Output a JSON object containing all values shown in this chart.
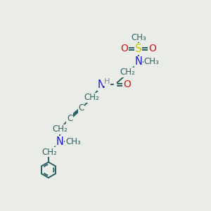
{
  "bg_color": "#eaece8",
  "bond_color": "#2a6060",
  "N_color": "#1a1acc",
  "O_color": "#cc1a1a",
  "S_color": "#c8c800",
  "H_color": "#7a8888",
  "figsize": [
    3.0,
    3.0
  ],
  "dpi": 100,
  "xlim": [
    0,
    10
  ],
  "ylim": [
    0,
    10
  ]
}
